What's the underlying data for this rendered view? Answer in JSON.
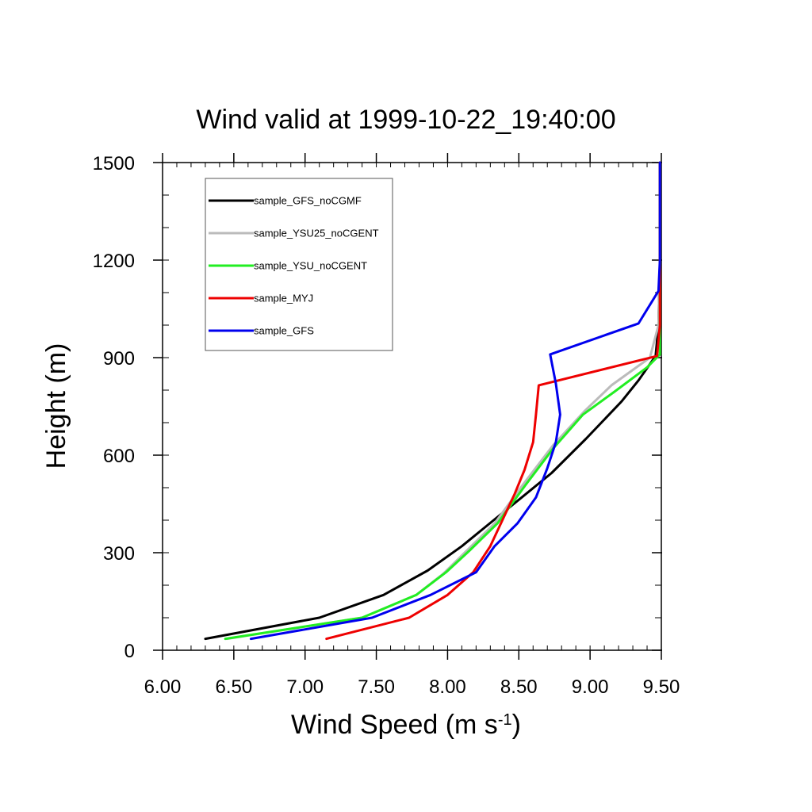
{
  "chart_data": {
    "type": "line",
    "title": "Wind valid at 1999-10-22_19:40:00",
    "xlabel": "Wind Speed (m s",
    "xlabel_sup": "-1",
    "xlabel_close": ")",
    "ylabel": "Height (m)",
    "xlim": [
      6.0,
      9.5
    ],
    "ylim": [
      0,
      1500
    ],
    "xticks": [
      6.0,
      6.5,
      7.0,
      7.5,
      8.0,
      8.5,
      9.0,
      9.5
    ],
    "xtick_labels": [
      "6.00",
      "6.50",
      "7.00",
      "7.50",
      "8.00",
      "8.50",
      "9.00",
      "9.50"
    ],
    "yticks": [
      0,
      300,
      600,
      900,
      1200,
      1500
    ],
    "ytick_labels": [
      "0",
      "300",
      "600",
      "900",
      "1200",
      "1500"
    ],
    "grid": false,
    "legend_position": "top-left",
    "series": [
      {
        "name": "sample_GFS_noCGMF",
        "color": "#000000",
        "x": [
          6.3,
          7.1,
          7.55,
          7.86,
          8.1,
          8.31,
          8.52,
          8.73,
          8.97,
          9.22,
          9.34,
          9.46,
          9.48,
          9.49,
          9.49
        ],
        "y": [
          35,
          100,
          170,
          245,
          320,
          395,
          470,
          545,
          650,
          765,
          830,
          905,
          1000,
          1200,
          1500
        ]
      },
      {
        "name": "sample_YSU25_noCGENT",
        "color": "#bbbbbb",
        "x": [
          6.45,
          7.4,
          7.78,
          7.97,
          8.12,
          8.33,
          8.53,
          8.74,
          8.96,
          9.15,
          9.42,
          9.48,
          9.49,
          9.49
        ],
        "y": [
          35,
          100,
          170,
          235,
          300,
          390,
          510,
          630,
          735,
          815,
          900,
          1000,
          1200,
          1500
        ]
      },
      {
        "name": "sample_YSU_noCGENT",
        "color": "#22ee22",
        "x": [
          6.44,
          7.4,
          7.78,
          7.99,
          8.15,
          8.35,
          8.55,
          8.74,
          8.95,
          9.17,
          9.4,
          9.49,
          9.49,
          9.49
        ],
        "y": [
          35,
          100,
          170,
          240,
          305,
          390,
          510,
          620,
          725,
          795,
          870,
          910,
          1100,
          1500
        ]
      },
      {
        "name": "sample_MYJ",
        "color": "#ee0000",
        "x": [
          7.15,
          7.73,
          8.0,
          8.18,
          8.3,
          8.39,
          8.47,
          8.54,
          8.6,
          8.62,
          8.64,
          9.47,
          9.49,
          9.49,
          9.49
        ],
        "y": [
          35,
          100,
          170,
          240,
          320,
          405,
          480,
          555,
          640,
          725,
          815,
          905,
          1000,
          1200,
          1500
        ]
      },
      {
        "name": "sample_GFS",
        "color": "#0000ee",
        "x": [
          6.62,
          7.47,
          7.88,
          8.2,
          8.33,
          8.49,
          8.62,
          8.7,
          8.76,
          8.79,
          8.76,
          8.72,
          9.34,
          9.48,
          9.49,
          9.49
        ],
        "y": [
          35,
          100,
          170,
          240,
          320,
          390,
          470,
          560,
          640,
          725,
          820,
          910,
          1005,
          1105,
          1200,
          1500
        ]
      }
    ]
  }
}
